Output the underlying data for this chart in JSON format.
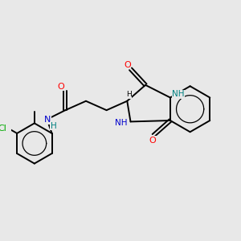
{
  "background_color": "#e8e8e8",
  "bond_color": "#000000",
  "nitrogen_color": "#0000cc",
  "nitrogen_h_color": "#008080",
  "oxygen_color": "#ff0000",
  "chlorine_color": "#00aa00",
  "line_width": 1.4,
  "fig_width": 3.0,
  "fig_height": 3.0,
  "dpi": 100,
  "xlim": [
    0,
    10
  ],
  "ylim": [
    0,
    10
  ]
}
